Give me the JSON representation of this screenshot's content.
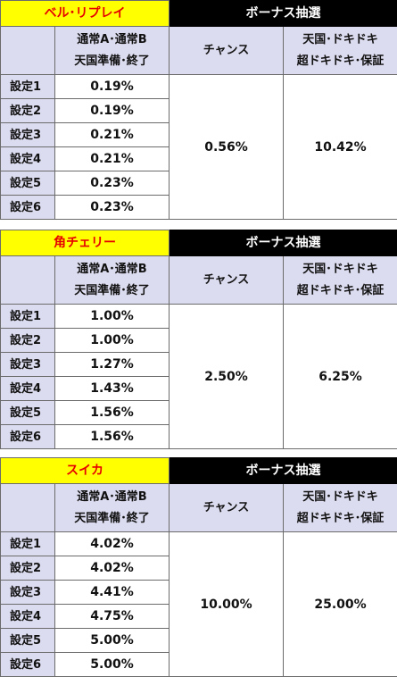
{
  "tables": [
    {
      "title": "ベル･リプレイ",
      "bonus_header": "ボーナス抽選",
      "col_normal_line1": "通常A･通常B",
      "col_normal_line2": "天国準備･終了",
      "col_chance": "チャンス",
      "col_tengoku_line1": "天国･ドキドキ",
      "col_tengoku_line2": "超ドキドキ･保証",
      "rows": [
        {
          "label": "設定1",
          "value": "0.19%"
        },
        {
          "label": "設定2",
          "value": "0.19%"
        },
        {
          "label": "設定3",
          "value": "0.21%"
        },
        {
          "label": "設定4",
          "value": "0.21%"
        },
        {
          "label": "設定5",
          "value": "0.23%"
        },
        {
          "label": "設定6",
          "value": "0.23%"
        }
      ],
      "chance_value": "0.56%",
      "tengoku_value": "10.42%"
    },
    {
      "title": "角チェリー",
      "bonus_header": "ボーナス抽選",
      "col_normal_line1": "通常A･通常B",
      "col_normal_line2": "天国準備･終了",
      "col_chance": "チャンス",
      "col_tengoku_line1": "天国･ドキドキ",
      "col_tengoku_line2": "超ドキドキ･保証",
      "rows": [
        {
          "label": "設定1",
          "value": "1.00%"
        },
        {
          "label": "設定2",
          "value": "1.00%"
        },
        {
          "label": "設定3",
          "value": "1.27%"
        },
        {
          "label": "設定4",
          "value": "1.43%"
        },
        {
          "label": "設定5",
          "value": "1.56%"
        },
        {
          "label": "設定6",
          "value": "1.56%"
        }
      ],
      "chance_value": "2.50%",
      "tengoku_value": "6.25%"
    },
    {
      "title": "スイカ",
      "bonus_header": "ボーナス抽選",
      "col_normal_line1": "通常A･通常B",
      "col_normal_line2": "天国準備･終了",
      "col_chance": "チャンス",
      "col_tengoku_line1": "天国･ドキドキ",
      "col_tengoku_line2": "超ドキドキ･保証",
      "rows": [
        {
          "label": "設定1",
          "value": "4.02%"
        },
        {
          "label": "設定2",
          "value": "4.02%"
        },
        {
          "label": "設定3",
          "value": "4.41%"
        },
        {
          "label": "設定4",
          "value": "4.75%"
        },
        {
          "label": "設定5",
          "value": "5.00%"
        },
        {
          "label": "設定6",
          "value": "5.00%"
        }
      ],
      "chance_value": "10.00%",
      "tengoku_value": "25.00%"
    }
  ],
  "colors": {
    "title_bg": "#ffff00",
    "title_text": "#e60000",
    "bonus_bg": "#000000",
    "bonus_text": "#ffffff",
    "header_bg": "#dcdcf0",
    "border": "#6b6b6b"
  }
}
